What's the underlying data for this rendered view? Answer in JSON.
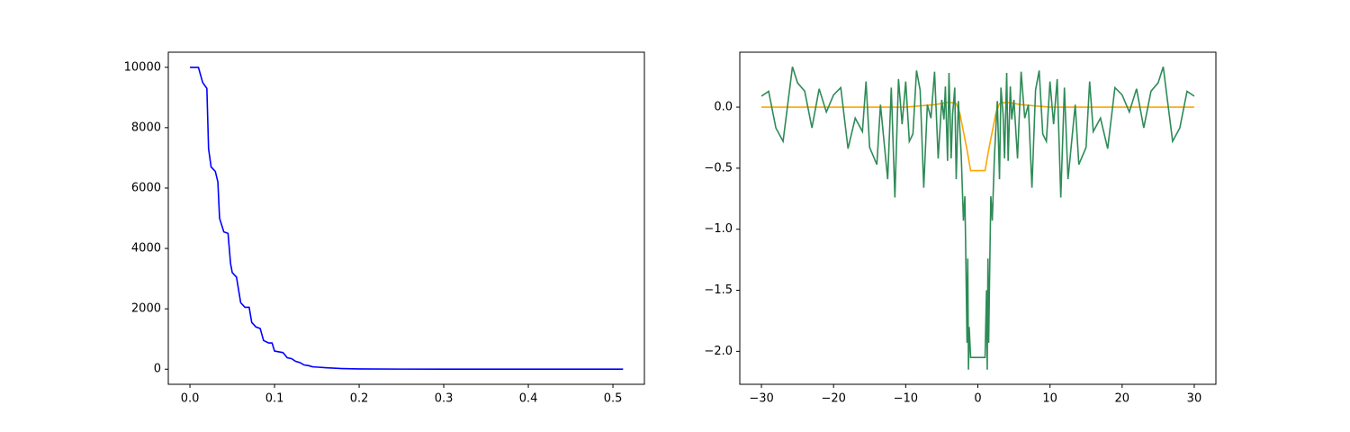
{
  "chart_data": [
    {
      "type": "line",
      "x": [
        0,
        0.01,
        0.015,
        0.02,
        0.022,
        0.025,
        0.03,
        0.033,
        0.035,
        0.04,
        0.045,
        0.048,
        0.05,
        0.055,
        0.06,
        0.065,
        0.07,
        0.073,
        0.078,
        0.083,
        0.087,
        0.093,
        0.097,
        0.1,
        0.11,
        0.115,
        0.12,
        0.125,
        0.13,
        0.135,
        0.14,
        0.145,
        0.15,
        0.16,
        0.17,
        0.18,
        0.2,
        0.25,
        0.3,
        0.4,
        0.512
      ],
      "values": [
        10000,
        10000,
        9500,
        9300,
        7300,
        6700,
        6550,
        6200,
        5000,
        4550,
        4500,
        3500,
        3200,
        3050,
        2200,
        2050,
        2050,
        1550,
        1400,
        1350,
        950,
        870,
        870,
        600,
        550,
        380,
        350,
        260,
        220,
        140,
        120,
        80,
        70,
        50,
        35,
        20,
        10,
        3,
        1,
        0,
        0
      ],
      "color": "#0000ff",
      "xlim": [
        -0.0256,
        0.5372
      ],
      "ylim": [
        -500,
        10500
      ],
      "xticks": [
        {
          "value": 0,
          "label": "0.0"
        },
        0.1,
        0.2,
        0.3,
        0.4,
        0.5
      ],
      "yticks": [
        0,
        2000,
        4000,
        6000,
        8000,
        10000
      ]
    },
    {
      "type": "line",
      "series": [
        {
          "color": "#ffa500",
          "x": [
            -30,
            -10,
            -6,
            -4,
            -3,
            -2.5,
            -2,
            -1.5,
            -1,
            1,
            1.5,
            2,
            2.5,
            3,
            4,
            6,
            10,
            30
          ],
          "values": [
            0,
            0,
            0.02,
            0.04,
            0.03,
            -0.05,
            -0.2,
            -0.35,
            -0.52,
            -0.52,
            -0.35,
            -0.2,
            -0.05,
            0.03,
            0.04,
            0.02,
            0,
            0
          ]
        },
        {
          "color": "#2e8b57",
          "x": [
            -30,
            -29,
            -28,
            -27,
            -25.7,
            -25,
            -24,
            -23,
            -22,
            -21,
            -20,
            -19,
            -18,
            -17,
            -16,
            -15.5,
            -15,
            -14,
            -13.5,
            -12.5,
            -12,
            -11.5,
            -11,
            -10.5,
            -10,
            -9.5,
            -9,
            -8.5,
            -8,
            -7.5,
            -7,
            -6.5,
            -6,
            -5.5,
            -5,
            -4.7,
            -4.5,
            -4.2,
            -4,
            -3.7,
            -3.5,
            -3.2,
            -3,
            -2.7,
            -2.3,
            -2,
            -1.8,
            -1.7,
            -1.5,
            -1.4,
            -1.3,
            -1.2,
            -1,
            1,
            1.2,
            1.3,
            1.4,
            1.5,
            1.7,
            1.8,
            2,
            2.3,
            2.7,
            3,
            3.2,
            3.5,
            3.7,
            4,
            4.2,
            4.5,
            4.7,
            5,
            5.5,
            6,
            6.5,
            7,
            7.5,
            8,
            8.5,
            9,
            9.5,
            10,
            10.5,
            11,
            11.5,
            12,
            12.5,
            13.5,
            14,
            15,
            15.5,
            16,
            17,
            18,
            19,
            20,
            21,
            22,
            23,
            24,
            25,
            25.7,
            27,
            28,
            29,
            30
          ],
          "values": [
            0.09,
            0.13,
            -0.17,
            -0.28,
            0.33,
            0.2,
            0.13,
            -0.17,
            0.15,
            -0.04,
            0.1,
            0.16,
            -0.34,
            -0.09,
            -0.2,
            0.21,
            -0.33,
            -0.47,
            0.02,
            -0.59,
            0.16,
            -0.74,
            0.23,
            -0.14,
            0.21,
            -0.28,
            -0.22,
            0.3,
            0.14,
            -0.66,
            0.02,
            -0.09,
            0.29,
            -0.42,
            0.06,
            -0.1,
            0.17,
            -0.44,
            0.28,
            -0.42,
            -0.06,
            0.16,
            -0.59,
            0.05,
            -0.4,
            -0.93,
            -0.73,
            -1.1,
            -1.93,
            -1.24,
            -2.15,
            -1.8,
            -2.05,
            -2.05,
            -1.5,
            -2.15,
            -1.24,
            -1.93,
            -1.1,
            -0.73,
            -0.93,
            -0.4,
            0.05,
            -0.59,
            0.16,
            -0.06,
            -0.42,
            0.28,
            -0.44,
            0.17,
            -0.1,
            0.06,
            -0.42,
            0.29,
            -0.09,
            0.02,
            -0.66,
            0.14,
            0.3,
            -0.22,
            -0.28,
            0.21,
            -0.14,
            0.23,
            -0.74,
            0.16,
            -0.59,
            0.02,
            -0.47,
            -0.33,
            0.21,
            -0.2,
            -0.09,
            -0.34,
            0.16,
            0.1,
            -0.04,
            0.15,
            -0.17,
            0.13,
            0.2,
            0.33,
            -0.28,
            -0.17,
            0.13,
            0.09
          ]
        }
      ],
      "xlim": [
        -33,
        33
      ],
      "ylim": [
        -2.27,
        0.45
      ],
      "xticks": [
        {
          "value": -30,
          "label": "−30"
        },
        {
          "value": -20,
          "label": "−20"
        },
        {
          "value": -10,
          "label": "−10"
        },
        0,
        10,
        20,
        30
      ],
      "yticks": [
        {
          "value": -2,
          "label": "−2.0"
        },
        {
          "value": -1.5,
          "label": "−1.5"
        },
        {
          "value": -1,
          "label": "−1.0"
        },
        {
          "value": -0.5,
          "label": "−0.5"
        },
        {
          "value": 0,
          "label": "0.0"
        }
      ]
    }
  ]
}
